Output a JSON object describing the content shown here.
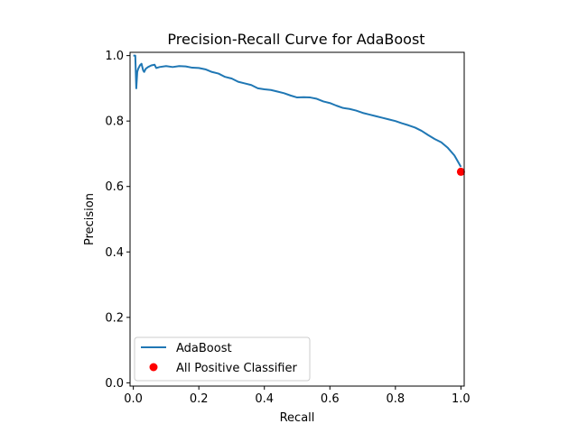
{
  "chart_data": {
    "type": "line",
    "title": "Precision-Recall Curve for AdaBoost",
    "xlabel": "Recall",
    "ylabel": "Precision",
    "xlim": [
      -0.01,
      1.01
    ],
    "ylim": [
      -0.01,
      1.01
    ],
    "xticks": [
      0.0,
      0.2,
      0.4,
      0.6,
      0.8,
      1.0
    ],
    "xtick_labels": [
      "0.0",
      "0.2",
      "0.4",
      "0.6",
      "0.8",
      "1.0"
    ],
    "yticks": [
      0.0,
      0.2,
      0.4,
      0.6,
      0.8,
      1.0
    ],
    "ytick_labels": [
      "0.0",
      "0.2",
      "0.4",
      "0.6",
      "0.8",
      "1.0"
    ],
    "grid": false,
    "legend_position": "lower-left",
    "series": [
      {
        "name": "AdaBoost",
        "kind": "line",
        "color": "#1f77b4",
        "x": [
          0.0,
          0.003,
          0.006,
          0.009,
          0.012,
          0.015,
          0.02,
          0.025,
          0.03,
          0.033,
          0.038,
          0.045,
          0.055,
          0.065,
          0.07,
          0.08,
          0.1,
          0.12,
          0.14,
          0.16,
          0.18,
          0.2,
          0.22,
          0.24,
          0.26,
          0.28,
          0.3,
          0.32,
          0.34,
          0.36,
          0.38,
          0.4,
          0.42,
          0.44,
          0.46,
          0.48,
          0.5,
          0.52,
          0.54,
          0.56,
          0.58,
          0.6,
          0.62,
          0.64,
          0.66,
          0.68,
          0.7,
          0.72,
          0.74,
          0.76,
          0.78,
          0.8,
          0.82,
          0.84,
          0.86,
          0.88,
          0.9,
          0.92,
          0.94,
          0.96,
          0.98,
          1.0
        ],
        "y": [
          1.0,
          1.0,
          1.0,
          0.9,
          0.95,
          0.96,
          0.97,
          0.975,
          0.955,
          0.95,
          0.96,
          0.965,
          0.97,
          0.972,
          0.962,
          0.965,
          0.968,
          0.965,
          0.968,
          0.967,
          0.963,
          0.962,
          0.958,
          0.95,
          0.945,
          0.935,
          0.93,
          0.92,
          0.915,
          0.91,
          0.9,
          0.897,
          0.895,
          0.89,
          0.885,
          0.878,
          0.872,
          0.873,
          0.872,
          0.868,
          0.86,
          0.855,
          0.847,
          0.84,
          0.837,
          0.832,
          0.825,
          0.82,
          0.815,
          0.81,
          0.805,
          0.8,
          0.793,
          0.787,
          0.78,
          0.77,
          0.757,
          0.745,
          0.735,
          0.718,
          0.695,
          0.66
        ]
      },
      {
        "name": "All Positive Classifier",
        "kind": "scatter",
        "color": "#ff0000",
        "x": [
          1.0
        ],
        "y": [
          0.645
        ]
      }
    ]
  }
}
